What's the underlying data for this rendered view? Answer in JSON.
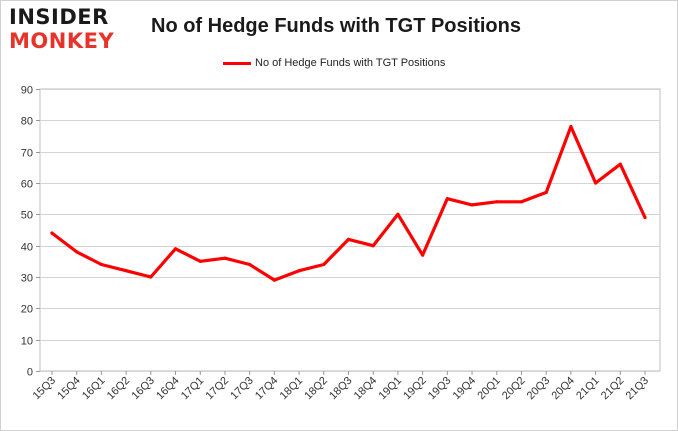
{
  "logo": {
    "line1": "INSIDER",
    "line2": "MONKEY"
  },
  "chart_data": {
    "type": "line",
    "title": "No of Hedge Funds with TGT Positions",
    "xlabel": "",
    "ylabel": "",
    "ylim": [
      0,
      90
    ],
    "yticks": [
      0,
      10,
      20,
      30,
      40,
      50,
      60,
      70,
      80,
      90
    ],
    "grid": true,
    "legend_position": "top-center",
    "categories": [
      "15Q3",
      "15Q4",
      "16Q1",
      "16Q2",
      "16Q3",
      "16Q4",
      "17Q1",
      "17Q2",
      "17Q3",
      "17Q4",
      "18Q1",
      "18Q2",
      "18Q3",
      "18Q4",
      "19Q1",
      "19Q2",
      "19Q3",
      "19Q4",
      "20Q1",
      "20Q2",
      "20Q3",
      "20Q4",
      "21Q1",
      "21Q2",
      "21Q3"
    ],
    "series": [
      {
        "name": "No of Hedge Funds with TGT Positions",
        "color": "#ff0000",
        "values": [
          44,
          38,
          34,
          32,
          30,
          39,
          35,
          36,
          34,
          29,
          32,
          34,
          42,
          40,
          50,
          37,
          55,
          53,
          54,
          54,
          57,
          78,
          60,
          66,
          49
        ]
      }
    ]
  }
}
